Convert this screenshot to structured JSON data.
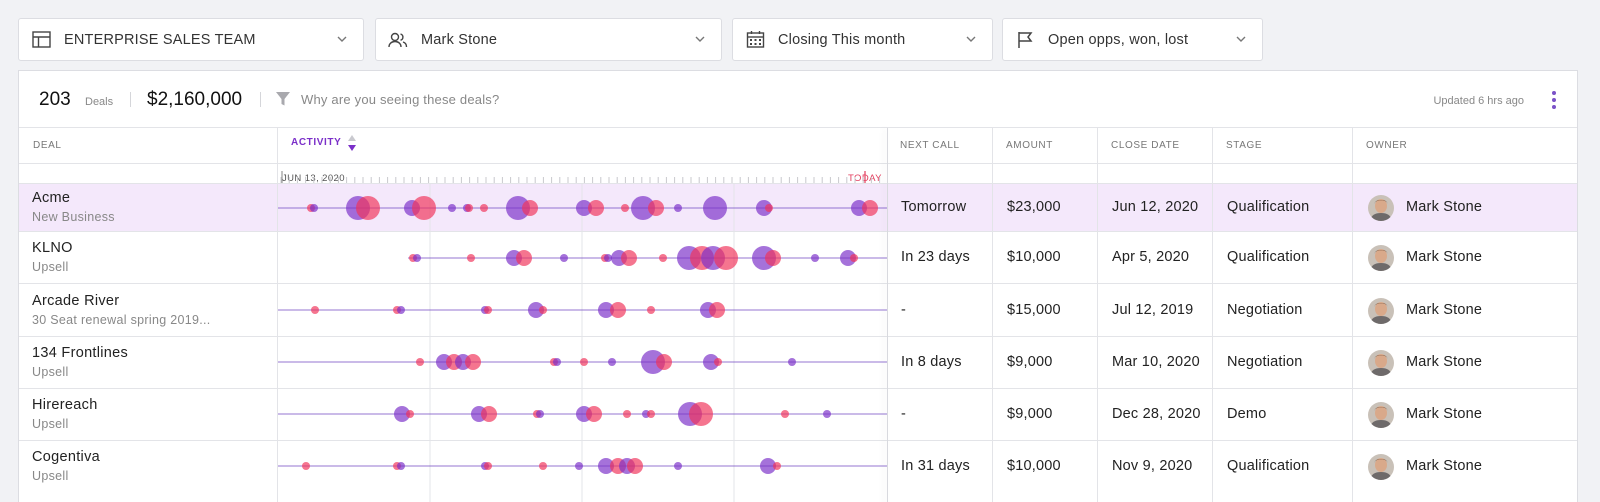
{
  "filters": [
    {
      "label": "ENTERPRISE SALES TEAM",
      "icon": "table-icon"
    },
    {
      "label": "Mark Stone",
      "icon": "users-icon"
    },
    {
      "label": "Closing This month",
      "icon": "calendar-icon"
    },
    {
      "label": "Open opps, won, lost",
      "icon": "flag-icon"
    }
  ],
  "summary": {
    "count": "203",
    "count_label": "Deals",
    "total": "$2,160,000",
    "why": "Why are you seeing these deals?",
    "updated": "Updated 6 hrs ago"
  },
  "columns": {
    "deal": "DEAL",
    "activity": "ACTIVITY",
    "next_call": "NEXT CALL",
    "amount": "AMOUNT",
    "close_date": "CLOSE DATE",
    "stage": "STAGE",
    "owner": "OWNER"
  },
  "timeline": {
    "start_label": "JUN 13, 2020",
    "end_label": "TODAY",
    "colors": {
      "purple": "#7b2fc9",
      "red": "#f0345a",
      "line": "#7a55c6"
    }
  },
  "rows": [
    {
      "name": "Acme",
      "sub": "New Business",
      "next_call": "Tomorrow",
      "amount": "$23,000",
      "close_date": "Jun 12, 2020",
      "stage": "Qualification",
      "owner": "Mark Stone",
      "selected": true
    },
    {
      "name": "KLNO",
      "sub": "Upsell",
      "next_call": "In 23 days",
      "amount": "$10,000",
      "close_date": "Apr 5, 2020",
      "stage": "Qualification",
      "owner": "Mark Stone",
      "selected": false
    },
    {
      "name": "Arcade River",
      "sub": "30 Seat renewal spring 2019...",
      "next_call": "-",
      "amount": "$15,000",
      "close_date": "Jul 12, 2019",
      "stage": "Negotiation",
      "owner": "Mark Stone",
      "selected": false
    },
    {
      "name": "134 Frontlines",
      "sub": "Upsell",
      "next_call": "In 8 days",
      "amount": "$9,000",
      "close_date": "Mar 10, 2020",
      "stage": "Negotiation",
      "owner": "Mark Stone",
      "selected": false
    },
    {
      "name": "Hirereach",
      "sub": "Upsell",
      "next_call": "-",
      "amount": "$9,000",
      "close_date": "Dec 28, 2020",
      "stage": "Demo",
      "owner": "Mark Stone",
      "selected": false
    },
    {
      "name": "Cogentiva",
      "sub": "Upsell",
      "next_call": "In 31 days",
      "amount": "$10,000",
      "close_date": "Nov 9, 2020",
      "stage": "Qualification",
      "owner": "Mark Stone",
      "selected": false
    }
  ]
}
